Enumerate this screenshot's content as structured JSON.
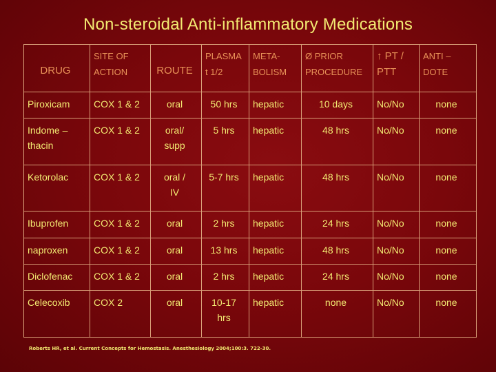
{
  "title": "Non-steroidal Anti-inflammatory Medications",
  "headers": {
    "drug": "DRUG",
    "site": "SITE OF\nACTION",
    "route": "ROUTE",
    "plasma": "PLASMA\n t 1/2",
    "metabolism": "META-\nBOLISM",
    "prior": "Ø PRIOR\nPROCEDURE",
    "pt": "↑ PT /\n   PTT",
    "anti": "ANTI –\n DOTE"
  },
  "rows": [
    {
      "drug": "Piroxicam",
      "site": "COX 1 & 2",
      "route": "oral",
      "plasma": "50 hrs",
      "metabolism": "hepatic",
      "prior": "10 days",
      "pt": "No/No",
      "anti": "none"
    },
    {
      "drug": "Indome –\n  thacin",
      "site": "COX 1 & 2",
      "route": "oral/\nsupp",
      "plasma": "5 hrs",
      "metabolism": "hepatic",
      "prior": "48 hrs",
      "pt": "No/No",
      "anti": "none"
    },
    {
      "drug": "Ketorolac",
      "site": "COX 1 & 2",
      "route": "oral /\nIV",
      "plasma": "5-7 hrs",
      "metabolism": "hepatic",
      "prior": "48 hrs",
      "pt": "No/No",
      "anti": "none"
    },
    {
      "drug": "Ibuprofen",
      "site": "COX 1 & 2",
      "route": "oral",
      "plasma": "2 hrs",
      "metabolism": "hepatic",
      "prior": "24 hrs",
      "pt": "No/No",
      "anti": "none"
    },
    {
      "drug": "naproxen",
      "site": "COX 1 & 2",
      "route": "oral",
      "plasma": "13 hrs",
      "metabolism": "hepatic",
      "prior": "48 hrs",
      "pt": "No/No",
      "anti": "none"
    },
    {
      "drug": "Diclofenac",
      "site": "COX 1 & 2",
      "route": "oral",
      "plasma": "2 hrs",
      "metabolism": "hepatic",
      "prior": "24 hrs",
      "pt": "No/No",
      "anti": "none"
    },
    {
      "drug": "Celecoxib",
      "site": "COX 2",
      "route": "oral",
      "plasma": "10-17\nhrs",
      "metabolism": "hepatic",
      "prior": "none",
      "pt": "No/No",
      "anti": "none"
    }
  ],
  "reference": "Roberts HR, et al. Current Concepts for Hemostasis. Anesthesiology 2004;100:3. 722-30.",
  "colors": {
    "background": "#7a070b",
    "text": "#f3ea72",
    "header_text": "#e89258",
    "border": "#d9a079"
  }
}
